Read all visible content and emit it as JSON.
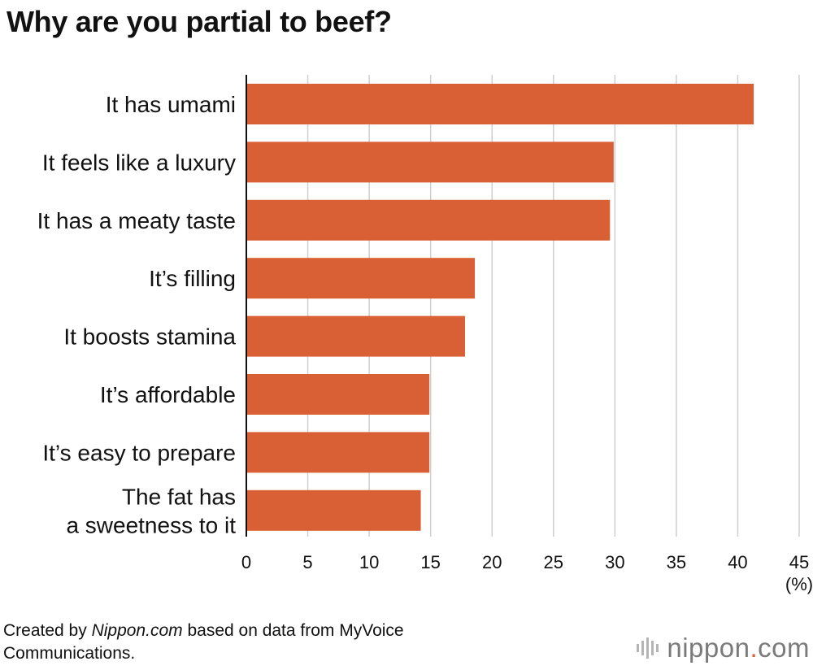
{
  "chart_data": {
    "type": "bar",
    "orientation": "horizontal",
    "title": "Why are you partial to beef?",
    "categories": [
      "It has umami",
      "It feels like a luxury",
      "It has a meaty taste",
      "It’s filling",
      "It boosts stamina",
      "It’s affordable",
      "It’s easy to prepare",
      "The fat has a sweetness to it"
    ],
    "category_lines": [
      [
        "It has umami"
      ],
      [
        "It feels like a luxury"
      ],
      [
        "It has a meaty taste"
      ],
      [
        "It’s filling"
      ],
      [
        "It boosts stamina"
      ],
      [
        "It’s affordable"
      ],
      [
        "It’s easy to prepare"
      ],
      [
        "The fat has",
        "a sweetness to it"
      ]
    ],
    "values": [
      41.3,
      29.9,
      29.6,
      18.6,
      17.8,
      14.9,
      14.9,
      14.2
    ],
    "xlim": [
      0,
      45
    ],
    "xticks": [
      "0",
      "5",
      "10",
      "15",
      "20",
      "25",
      "30",
      "35",
      "40",
      "45"
    ],
    "xunit": "(%)",
    "grid": true,
    "bar_color": "#d95f34"
  },
  "footer": {
    "source_prefix": "Created by ",
    "source_site": "Nippon.com",
    "source_suffix": " based on data from MyVoice Communications.",
    "logo_name": "nippon",
    "logo_dot": ".",
    "logo_tld": "com"
  }
}
